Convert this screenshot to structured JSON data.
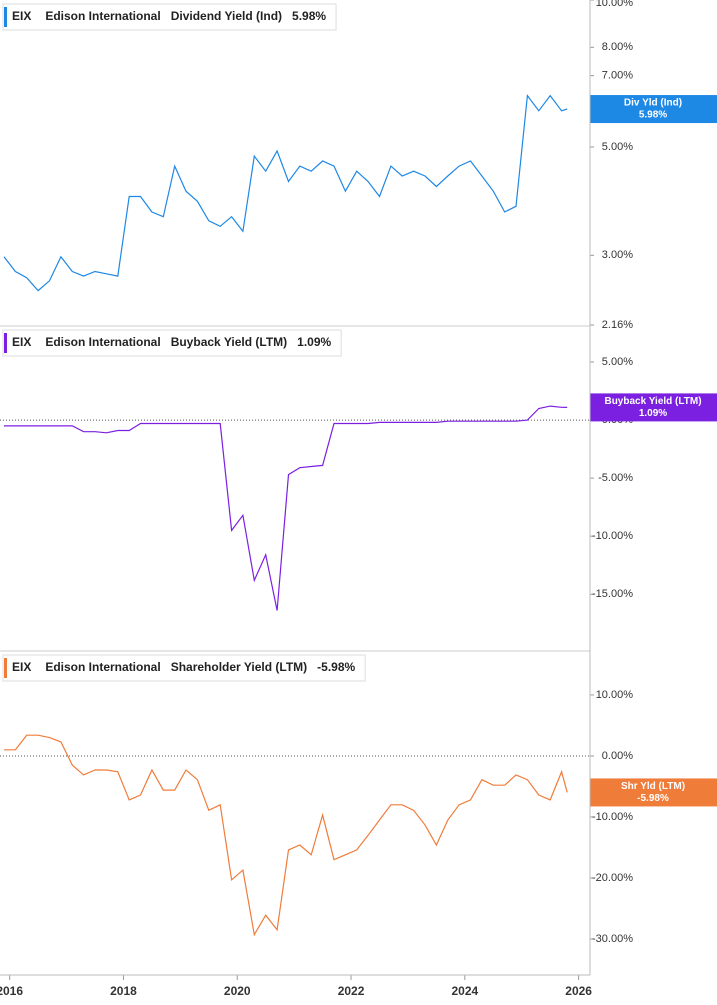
{
  "chart_data": [
    {
      "type": "line",
      "ticker": "EIX",
      "company": "Edison International",
      "metric_value": "5.98%",
      "badge_label": "Div Yld (Ind)",
      "badge_value": "5.98%",
      "log_scale": true,
      "zero_line": false,
      "x": [
        2015.9,
        2016.1,
        2016.3,
        2016.5,
        2016.7,
        2016.9,
        2017.1,
        2017.3,
        2017.5,
        2017.7,
        2017.9,
        2018.1,
        2018.3,
        2018.5,
        2018.7,
        2018.9,
        2019.1,
        2019.3,
        2019.5,
        2019.7,
        2019.9,
        2020.1,
        2020.3,
        2020.5,
        2020.7,
        2020.9,
        2021.1,
        2021.3,
        2021.5,
        2021.7,
        2021.9,
        2022.1,
        2022.3,
        2022.5,
        2022.7,
        2022.9,
        2023.1,
        2023.3,
        2023.5,
        2023.7,
        2023.9,
        2024.1,
        2024.3,
        2024.5,
        2024.7,
        2024.9,
        2025.1,
        2025.3,
        2025.5,
        2025.7,
        2025.8
      ],
      "series": [
        {
          "name": "Dividend Yield (Ind)",
          "color": "#1e88e5",
          "values": [
            2.98,
            2.78,
            2.7,
            2.54,
            2.66,
            2.98,
            2.78,
            2.72,
            2.78,
            2.75,
            2.72,
            3.96,
            3.96,
            3.68,
            3.6,
            4.57,
            4.06,
            3.87,
            3.53,
            3.44,
            3.6,
            3.36,
            4.79,
            4.46,
            4.91,
            4.25,
            4.57,
            4.46,
            4.68,
            4.57,
            4.06,
            4.46,
            4.25,
            3.96,
            4.57,
            4.36,
            4.46,
            4.36,
            4.15,
            4.36,
            4.57,
            4.68,
            4.36,
            4.06,
            3.68,
            3.78,
            6.37,
            5.93,
            6.37,
            5.93,
            5.98
          ]
        }
      ],
      "xlim": [
        2015.83,
        2026.2
      ],
      "ylim": [
        2.16,
        10
      ],
      "yticks": [
        {
          "value": 10,
          "label": "10.00%"
        },
        {
          "value": 8,
          "label": "8.00%"
        },
        {
          "value": 7,
          "label": "7.00%"
        },
        {
          "value": 5,
          "label": "5.00%"
        },
        {
          "value": 3,
          "label": "3.00%"
        },
        {
          "value": 2.16,
          "label": "2.16%"
        }
      ]
    },
    {
      "type": "line",
      "ticker": "EIX",
      "company": "Edison International",
      "metric_value": "1.09%",
      "badge_label": "Buyback Yield (LTM)",
      "badge_value": "1.09%",
      "log_scale": false,
      "zero_line": true,
      "x": [
        2015.9,
        2016.1,
        2016.3,
        2016.5,
        2016.7,
        2016.9,
        2017.1,
        2017.3,
        2017.5,
        2017.7,
        2017.9,
        2018.1,
        2018.3,
        2018.5,
        2018.7,
        2018.9,
        2019.1,
        2019.3,
        2019.5,
        2019.7,
        2019.9,
        2020.1,
        2020.3,
        2020.5,
        2020.7,
        2020.9,
        2021.1,
        2021.3,
        2021.5,
        2021.7,
        2021.9,
        2022.1,
        2022.3,
        2022.5,
        2022.7,
        2022.9,
        2023.1,
        2023.3,
        2023.5,
        2023.7,
        2023.9,
        2024.1,
        2024.3,
        2024.5,
        2024.7,
        2024.9,
        2025.1,
        2025.3,
        2025.5,
        2025.7,
        2025.8
      ],
      "series": [
        {
          "name": "Buyback Yield (LTM)",
          "color": "#7b1fe0",
          "values": [
            -0.5,
            -0.5,
            -0.5,
            -0.5,
            -0.5,
            -0.5,
            -0.5,
            -1.0,
            -1.0,
            -1.1,
            -0.9,
            -0.9,
            -0.3,
            -0.3,
            -0.3,
            -0.3,
            -0.3,
            -0.3,
            -0.3,
            -0.3,
            -9.5,
            -8.2,
            -13.8,
            -11.6,
            -16.4,
            -4.7,
            -4.1,
            -4.0,
            -3.9,
            -0.3,
            -0.3,
            -0.3,
            -0.3,
            -0.2,
            -0.2,
            -0.2,
            -0.2,
            -0.2,
            -0.2,
            -0.1,
            -0.1,
            -0.1,
            -0.1,
            -0.1,
            -0.1,
            -0.1,
            0.0,
            1.0,
            1.2,
            1.1,
            1.09
          ]
        }
      ],
      "xlim": [
        2015.83,
        2026.2
      ],
      "ylim": [
        -19.8,
        8.1
      ],
      "yticks": [
        {
          "value": 5,
          "label": "5.00%"
        },
        {
          "value": 0,
          "label": "0.00%"
        },
        {
          "value": -5,
          "label": "-5.00%"
        },
        {
          "value": -10,
          "label": "-10.00%"
        },
        {
          "value": -15,
          "label": "-15.00%"
        }
      ]
    },
    {
      "type": "line",
      "ticker": "EIX",
      "company": "Edison International",
      "metric_value": "-5.98%",
      "badge_label": "Shr Yld (LTM)",
      "badge_value": "-5.98%",
      "log_scale": false,
      "zero_line": true,
      "x": [
        2015.9,
        2016.1,
        2016.3,
        2016.5,
        2016.7,
        2016.9,
        2017.1,
        2017.3,
        2017.5,
        2017.7,
        2017.9,
        2018.1,
        2018.3,
        2018.5,
        2018.7,
        2018.9,
        2019.1,
        2019.3,
        2019.5,
        2019.7,
        2019.9,
        2020.1,
        2020.3,
        2020.5,
        2020.7,
        2020.9,
        2021.1,
        2021.3,
        2021.5,
        2021.7,
        2021.9,
        2022.1,
        2022.3,
        2022.5,
        2022.7,
        2022.9,
        2023.1,
        2023.3,
        2023.5,
        2023.7,
        2023.9,
        2024.1,
        2024.3,
        2024.5,
        2024.7,
        2024.9,
        2025.1,
        2025.3,
        2025.5,
        2025.7,
        2025.8
      ],
      "series": [
        {
          "name": "Shareholder Yield (LTM)",
          "color": "#f07c3a",
          "values": [
            1.0,
            1.0,
            3.4,
            3.4,
            3.0,
            2.3,
            -1.5,
            -3.1,
            -2.3,
            -2.3,
            -2.6,
            -7.2,
            -6.4,
            -2.3,
            -5.6,
            -5.6,
            -2.3,
            -3.9,
            -8.9,
            -8.0,
            -20.3,
            -18.7,
            -29.3,
            -26.1,
            -28.5,
            -15.4,
            -14.6,
            -16.2,
            -9.7,
            -17.0,
            -16.2,
            -15.4,
            -13.0,
            -10.5,
            -8.0,
            -8.0,
            -8.9,
            -11.3,
            -14.6,
            -10.5,
            -8.0,
            -7.2,
            -3.9,
            -4.8,
            -4.8,
            -3.1,
            -3.9,
            -6.4,
            -7.2,
            -2.6,
            -5.98
          ]
        }
      ],
      "xlim": [
        2015.83,
        2026.2
      ],
      "ylim": [
        -35.9,
        17.2
      ],
      "yticks": [
        {
          "value": 10,
          "label": "10.00%"
        },
        {
          "value": 0,
          "label": "0.00%"
        },
        {
          "value": -10,
          "label": "-10.00%"
        },
        {
          "value": -20,
          "label": "-20.00%"
        },
        {
          "value": -30,
          "label": "-30.00%"
        }
      ],
      "xticks": [
        2016,
        2018,
        2020,
        2022,
        2024,
        2026
      ]
    }
  ]
}
